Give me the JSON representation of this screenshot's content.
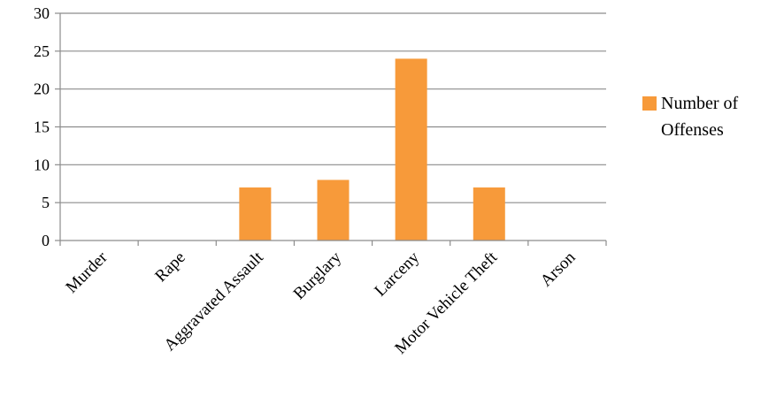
{
  "chart_data": {
    "type": "bar",
    "categories": [
      "Murder",
      "Rape",
      "Aggravated Assault",
      "Burglary",
      "Larceny",
      "Motor Vehicle Theft",
      "Arson"
    ],
    "series": [
      {
        "name": "Number of Offenses",
        "values": [
          0,
          0,
          7,
          8,
          24,
          7,
          0
        ],
        "color": "#F79A3A"
      }
    ],
    "yticks": [
      "0",
      "5",
      "10",
      "15",
      "20",
      "25",
      "30"
    ],
    "ylim": [
      0,
      30
    ],
    "grid": true,
    "legend": {
      "placement": "right",
      "lines": [
        "Number of",
        "Offenses"
      ]
    }
  }
}
